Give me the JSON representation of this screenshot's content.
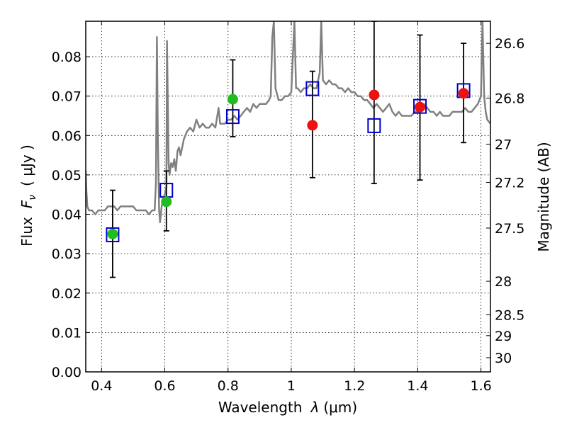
{
  "chart_data": {
    "type": "scatter",
    "xlabel": {
      "prefix": "Wavelength",
      "symbol": "λ",
      "unit": "(μm)"
    },
    "ylabel": {
      "prefix": "Flux",
      "symbol": "F",
      "subscript": "ν",
      "unit": "( μJy )"
    },
    "ylabel_right": "Magnitude (AB)",
    "xlim": [
      0.35,
      1.63
    ],
    "ylim": [
      0.0,
      0.089
    ],
    "grid": true,
    "x_ticks": [
      0.4,
      0.6,
      0.8,
      1.0,
      1.2,
      1.4,
      1.6
    ],
    "x_tick_labels": [
      "0.4",
      "0.6",
      "0.8",
      "1",
      "1.2",
      "1.4",
      "1.6"
    ],
    "y_ticks": [
      0.0,
      0.01,
      0.02,
      0.03,
      0.04,
      0.05,
      0.06,
      0.07,
      0.08
    ],
    "y_tick_labels": [
      "0.00",
      "0.01",
      "0.02",
      "0.03",
      "0.04",
      "0.05",
      "0.06",
      "0.07",
      "0.08"
    ],
    "right_ticks": [
      {
        "label": "26.6",
        "flux": 0.0834
      },
      {
        "label": "26.8",
        "flux": 0.0695
      },
      {
        "label": "27",
        "flux": 0.0578
      },
      {
        "label": "27.2",
        "flux": 0.0481
      },
      {
        "label": "27.5",
        "flux": 0.0365
      },
      {
        "label": "28",
        "flux": 0.023
      },
      {
        "label": "28.5",
        "flux": 0.0145
      },
      {
        "label": "29",
        "flux": 0.0092
      },
      {
        "label": "30",
        "flux": 0.0036
      }
    ],
    "colors": {
      "spectrum": "#808080",
      "model_squares": "#0000cc",
      "optical_points": "#22bb22",
      "nir_points": "#ee1111",
      "errorbars": "#000000"
    },
    "spectrum": [
      [
        0.35,
        0.051
      ],
      [
        0.352,
        0.046
      ],
      [
        0.355,
        0.042
      ],
      [
        0.36,
        0.041
      ],
      [
        0.37,
        0.041
      ],
      [
        0.38,
        0.04
      ],
      [
        0.39,
        0.041
      ],
      [
        0.4,
        0.041
      ],
      [
        0.41,
        0.041
      ],
      [
        0.42,
        0.042
      ],
      [
        0.43,
        0.042
      ],
      [
        0.44,
        0.042
      ],
      [
        0.45,
        0.041
      ],
      [
        0.46,
        0.042
      ],
      [
        0.47,
        0.042
      ],
      [
        0.48,
        0.042
      ],
      [
        0.49,
        0.042
      ],
      [
        0.5,
        0.042
      ],
      [
        0.51,
        0.041
      ],
      [
        0.52,
        0.041
      ],
      [
        0.53,
        0.041
      ],
      [
        0.54,
        0.041
      ],
      [
        0.55,
        0.04
      ],
      [
        0.56,
        0.041
      ],
      [
        0.568,
        0.041
      ],
      [
        0.572,
        0.048
      ],
      [
        0.575,
        0.085
      ],
      [
        0.578,
        0.06
      ],
      [
        0.582,
        0.041
      ],
      [
        0.585,
        0.038
      ],
      [
        0.59,
        0.042
      ],
      [
        0.595,
        0.044
      ],
      [
        0.6,
        0.045
      ],
      [
        0.605,
        0.047
      ],
      [
        0.607,
        0.084
      ],
      [
        0.609,
        0.072
      ],
      [
        0.612,
        0.053
      ],
      [
        0.615,
        0.05
      ],
      [
        0.62,
        0.053
      ],
      [
        0.625,
        0.052
      ],
      [
        0.63,
        0.054
      ],
      [
        0.635,
        0.051
      ],
      [
        0.64,
        0.056
      ],
      [
        0.645,
        0.057
      ],
      [
        0.65,
        0.055
      ],
      [
        0.655,
        0.057
      ],
      [
        0.66,
        0.059
      ],
      [
        0.67,
        0.061
      ],
      [
        0.68,
        0.062
      ],
      [
        0.69,
        0.061
      ],
      [
        0.7,
        0.064
      ],
      [
        0.71,
        0.062
      ],
      [
        0.72,
        0.063
      ],
      [
        0.73,
        0.062
      ],
      [
        0.74,
        0.062
      ],
      [
        0.75,
        0.063
      ],
      [
        0.76,
        0.062
      ],
      [
        0.77,
        0.067
      ],
      [
        0.775,
        0.063
      ],
      [
        0.78,
        0.063
      ],
      [
        0.79,
        0.063
      ],
      [
        0.8,
        0.064
      ],
      [
        0.81,
        0.064
      ],
      [
        0.82,
        0.065
      ],
      [
        0.83,
        0.064
      ],
      [
        0.84,
        0.065
      ],
      [
        0.85,
        0.066
      ],
      [
        0.86,
        0.067
      ],
      [
        0.87,
        0.066
      ],
      [
        0.88,
        0.068
      ],
      [
        0.89,
        0.067
      ],
      [
        0.9,
        0.068
      ],
      [
        0.91,
        0.068
      ],
      [
        0.92,
        0.068
      ],
      [
        0.93,
        0.069
      ],
      [
        0.935,
        0.07
      ],
      [
        0.94,
        0.085
      ],
      [
        0.945,
        0.089
      ],
      [
        0.95,
        0.072
      ],
      [
        0.96,
        0.069
      ],
      [
        0.97,
        0.069
      ],
      [
        0.98,
        0.07
      ],
      [
        0.99,
        0.07
      ],
      [
        1.0,
        0.071
      ],
      [
        1.01,
        0.089
      ],
      [
        1.015,
        0.072
      ],
      [
        1.02,
        0.072
      ],
      [
        1.03,
        0.071
      ],
      [
        1.04,
        0.072
      ],
      [
        1.05,
        0.072
      ],
      [
        1.06,
        0.073
      ],
      [
        1.07,
        0.072
      ],
      [
        1.08,
        0.072
      ],
      [
        1.09,
        0.076
      ],
      [
        1.095,
        0.089
      ],
      [
        1.1,
        0.074
      ],
      [
        1.11,
        0.073
      ],
      [
        1.12,
        0.074
      ],
      [
        1.13,
        0.073
      ],
      [
        1.14,
        0.073
      ],
      [
        1.15,
        0.072
      ],
      [
        1.16,
        0.072
      ],
      [
        1.17,
        0.071
      ],
      [
        1.18,
        0.072
      ],
      [
        1.19,
        0.071
      ],
      [
        1.2,
        0.071
      ],
      [
        1.21,
        0.07
      ],
      [
        1.22,
        0.07
      ],
      [
        1.23,
        0.069
      ],
      [
        1.24,
        0.069
      ],
      [
        1.25,
        0.068
      ],
      [
        1.26,
        0.067
      ],
      [
        1.27,
        0.068
      ],
      [
        1.28,
        0.067
      ],
      [
        1.29,
        0.066
      ],
      [
        1.3,
        0.067
      ],
      [
        1.31,
        0.068
      ],
      [
        1.32,
        0.066
      ],
      [
        1.33,
        0.065
      ],
      [
        1.34,
        0.066
      ],
      [
        1.35,
        0.065
      ],
      [
        1.36,
        0.065
      ],
      [
        1.37,
        0.065
      ],
      [
        1.38,
        0.065
      ],
      [
        1.39,
        0.066
      ],
      [
        1.4,
        0.066
      ],
      [
        1.41,
        0.067
      ],
      [
        1.42,
        0.068
      ],
      [
        1.43,
        0.067
      ],
      [
        1.44,
        0.066
      ],
      [
        1.45,
        0.066
      ],
      [
        1.46,
        0.065
      ],
      [
        1.47,
        0.066
      ],
      [
        1.48,
        0.065
      ],
      [
        1.49,
        0.065
      ],
      [
        1.5,
        0.065
      ],
      [
        1.51,
        0.066
      ],
      [
        1.52,
        0.066
      ],
      [
        1.53,
        0.066
      ],
      [
        1.54,
        0.066
      ],
      [
        1.55,
        0.067
      ],
      [
        1.56,
        0.066
      ],
      [
        1.57,
        0.066
      ],
      [
        1.58,
        0.067
      ],
      [
        1.59,
        0.068
      ],
      [
        1.6,
        0.07
      ],
      [
        1.605,
        0.089
      ],
      [
        1.61,
        0.07
      ],
      [
        1.615,
        0.066
      ],
      [
        1.62,
        0.064
      ],
      [
        1.63,
        0.063
      ]
    ],
    "model_squares": [
      {
        "x": 0.435,
        "y": 0.0348
      },
      {
        "x": 0.605,
        "y": 0.0461
      },
      {
        "x": 0.815,
        "y": 0.0648
      },
      {
        "x": 1.067,
        "y": 0.0719
      },
      {
        "x": 1.262,
        "y": 0.0625
      },
      {
        "x": 1.407,
        "y": 0.0674
      },
      {
        "x": 1.545,
        "y": 0.0714
      }
    ],
    "observed_points": [
      {
        "x": 0.435,
        "y": 0.035,
        "yerr_low": 0.024,
        "yerr_high": 0.0461,
        "band": "optical"
      },
      {
        "x": 0.605,
        "y": 0.0432,
        "yerr_low": 0.0358,
        "yerr_high": 0.051,
        "band": "optical"
      },
      {
        "x": 0.815,
        "y": 0.0692,
        "yerr_low": 0.0597,
        "yerr_high": 0.0792,
        "band": "optical"
      },
      {
        "x": 1.067,
        "y": 0.0626,
        "yerr_low": 0.0493,
        "yerr_high": 0.0763,
        "band": "nir"
      },
      {
        "x": 1.262,
        "y": 0.0703,
        "yerr_low": 0.0478,
        "yerr_high": 0.089,
        "band": "nir"
      },
      {
        "x": 1.407,
        "y": 0.0672,
        "yerr_low": 0.0487,
        "yerr_high": 0.0855,
        "band": "nir"
      },
      {
        "x": 1.545,
        "y": 0.0707,
        "yerr_low": 0.0582,
        "yerr_high": 0.0834,
        "band": "nir"
      }
    ]
  }
}
